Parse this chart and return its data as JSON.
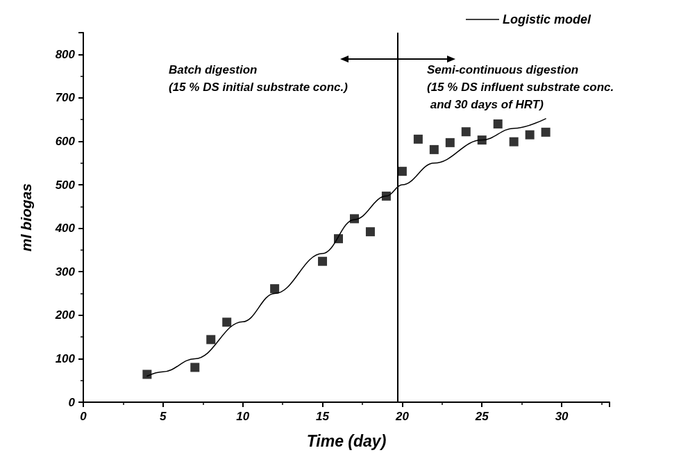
{
  "chart_data": {
    "type": "scatter",
    "xlabel": "Time (day)",
    "ylabel": "ml biogas",
    "xlim": [
      0,
      33
    ],
    "xticks": [
      0,
      5,
      10,
      15,
      20,
      25,
      30
    ],
    "ylim": [
      0,
      850
    ],
    "yticks": [
      0,
      100,
      200,
      300,
      400,
      500,
      600,
      700,
      800
    ],
    "grid": false,
    "legend": "top right",
    "marker": "square",
    "series": [
      {
        "color": "#000000",
        "x": [
          4,
          7,
          8,
          9,
          12,
          15,
          16,
          17,
          18,
          19,
          20,
          21,
          22,
          23,
          24,
          25,
          26,
          27,
          28,
          29
        ],
        "values": [
          64,
          80,
          144,
          184,
          261,
          324,
          376,
          422,
          392,
          474,
          531,
          605,
          581,
          597,
          622,
          603,
          640,
          599,
          615,
          621
        ]
      },
      {
        "type": "line",
        "name": "Logistic model",
        "color": "#000000",
        "marker": "none",
        "line_style": "solid",
        "x": [
          4,
          5,
          7,
          10,
          12,
          15,
          17,
          19,
          20,
          22,
          25,
          27,
          29
        ],
        "values": [
          60,
          70,
          100,
          185,
          250,
          342,
          420,
          474,
          500,
          550,
          603,
          630,
          652
        ]
      }
    ],
    "ref_lines": [
      {
        "axis": "x",
        "value": 19.7,
        "color": "#000000",
        "line_style": "solid"
      }
    ],
    "annotations": [
      "Batch digestion\n(15 % DS initial substrate conc.)",
      "Semi-continuous digestion\n(15 % DS influent substrate conc.\n and 30 days of HRT)"
    ]
  }
}
